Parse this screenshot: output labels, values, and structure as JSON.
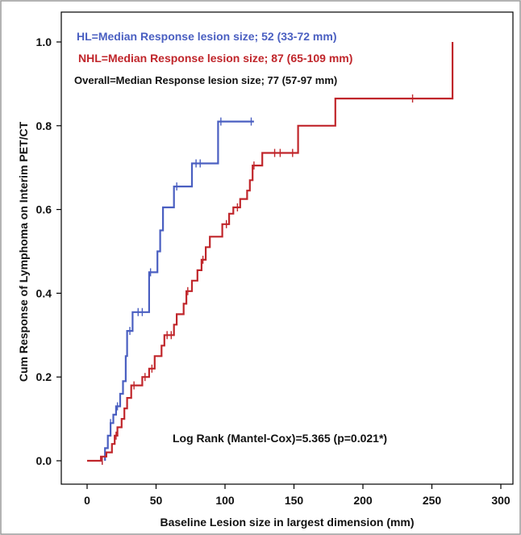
{
  "chart_data": {
    "type": "line",
    "subtype": "step (Kaplan-Meier cumulative response)",
    "xlabel": "Baseline Lesion size in largest dimension (mm)",
    "ylabel": "Cum Response of Lymphoma on Interim PET/CT",
    "xlim": [
      0,
      300
    ],
    "ylim": [
      0,
      1.0
    ],
    "x_ticks": [
      "0",
      "50",
      "100",
      "150",
      "200",
      "250",
      "300"
    ],
    "y_ticks": [
      "0.0",
      "0.2",
      "0.4",
      "0.6",
      "0.8",
      "1.0"
    ],
    "grid": false,
    "colors": {
      "hl": "#4a5fc1",
      "nhl": "#c0262b",
      "overall": "#111111",
      "frame": "#000000"
    },
    "annotations": [
      {
        "id": "hl",
        "text": "HL=Median Response lesion size; 52 (33-72 mm)",
        "color": "#4a5fc1"
      },
      {
        "id": "nhl",
        "text": "NHL=Median Response lesion size; 87 (65-109 mm)",
        "color": "#c0262b"
      },
      {
        "id": "overall",
        "text": "Overall=Median Response lesion size; 77 (57-97 mm)",
        "color": "#111111"
      },
      {
        "id": "logrank",
        "text": "Log Rank (Mantel-Cox)=5.365 (p=0.021*)",
        "color": "#111111"
      }
    ],
    "series": [
      {
        "key": "hl",
        "color": "#4a5fc1",
        "steps": [
          [
            13,
            0
          ],
          [
            13,
            0.03
          ],
          [
            15,
            0.03
          ],
          [
            15,
            0.06
          ],
          [
            17,
            0.06
          ],
          [
            17,
            0.09
          ],
          [
            19,
            0.09
          ],
          [
            19,
            0.11
          ],
          [
            21,
            0.11
          ],
          [
            21,
            0.13
          ],
          [
            24,
            0.13
          ],
          [
            24,
            0.16
          ],
          [
            26,
            0.16
          ],
          [
            26,
            0.19
          ],
          [
            28,
            0.19
          ],
          [
            28,
            0.25
          ],
          [
            29,
            0.25
          ],
          [
            29,
            0.31
          ],
          [
            33,
            0.31
          ],
          [
            33,
            0.355
          ],
          [
            45,
            0.355
          ],
          [
            45,
            0.45
          ],
          [
            51,
            0.45
          ],
          [
            51,
            0.5
          ],
          [
            53,
            0.5
          ],
          [
            53,
            0.55
          ],
          [
            55,
            0.55
          ],
          [
            55,
            0.605
          ],
          [
            63,
            0.605
          ],
          [
            63,
            0.655
          ],
          [
            76,
            0.655
          ],
          [
            76,
            0.71
          ],
          [
            95,
            0.71
          ],
          [
            95,
            0.81
          ],
          [
            121,
            0.81
          ]
        ],
        "censored": [
          [
            11,
            0
          ],
          [
            17,
            0.09
          ],
          [
            22,
            0.13
          ],
          [
            31,
            0.31
          ],
          [
            37,
            0.355
          ],
          [
            40,
            0.355
          ],
          [
            46,
            0.45
          ],
          [
            65,
            0.655
          ],
          [
            79,
            0.71
          ],
          [
            82,
            0.71
          ],
          [
            97,
            0.81
          ],
          [
            119,
            0.81
          ]
        ]
      },
      {
        "key": "nhl",
        "color": "#c0262b",
        "steps": [
          [
            0,
            0
          ],
          [
            10,
            0
          ],
          [
            10,
            0.01
          ],
          [
            14,
            0.01
          ],
          [
            14,
            0.02
          ],
          [
            18,
            0.02
          ],
          [
            18,
            0.04
          ],
          [
            20,
            0.04
          ],
          [
            20,
            0.06
          ],
          [
            22,
            0.06
          ],
          [
            22,
            0.08
          ],
          [
            25,
            0.08
          ],
          [
            25,
            0.1
          ],
          [
            27,
            0.1
          ],
          [
            27,
            0.125
          ],
          [
            29,
            0.125
          ],
          [
            29,
            0.15
          ],
          [
            32,
            0.15
          ],
          [
            32,
            0.18
          ],
          [
            40,
            0.18
          ],
          [
            40,
            0.2
          ],
          [
            45,
            0.2
          ],
          [
            45,
            0.22
          ],
          [
            49,
            0.22
          ],
          [
            49,
            0.25
          ],
          [
            54,
            0.25
          ],
          [
            54,
            0.275
          ],
          [
            56,
            0.275
          ],
          [
            56,
            0.3
          ],
          [
            63,
            0.3
          ],
          [
            63,
            0.325
          ],
          [
            65,
            0.325
          ],
          [
            65,
            0.35
          ],
          [
            70,
            0.35
          ],
          [
            70,
            0.375
          ],
          [
            72,
            0.375
          ],
          [
            72,
            0.405
          ],
          [
            76,
            0.405
          ],
          [
            76,
            0.43
          ],
          [
            80,
            0.43
          ],
          [
            80,
            0.455
          ],
          [
            83,
            0.455
          ],
          [
            83,
            0.48
          ],
          [
            86,
            0.48
          ],
          [
            86,
            0.51
          ],
          [
            89,
            0.51
          ],
          [
            89,
            0.535
          ],
          [
            98,
            0.535
          ],
          [
            98,
            0.565
          ],
          [
            103,
            0.565
          ],
          [
            103,
            0.59
          ],
          [
            106,
            0.59
          ],
          [
            106,
            0.605
          ],
          [
            111,
            0.605
          ],
          [
            111,
            0.625
          ],
          [
            116,
            0.625
          ],
          [
            116,
            0.645
          ],
          [
            118,
            0.645
          ],
          [
            118,
            0.67
          ],
          [
            120,
            0.67
          ],
          [
            120,
            0.705
          ],
          [
            127,
            0.705
          ],
          [
            127,
            0.735
          ],
          [
            153,
            0.735
          ],
          [
            153,
            0.8
          ],
          [
            180,
            0.8
          ],
          [
            180,
            0.865
          ],
          [
            265,
            0.865
          ],
          [
            265,
            1.0
          ]
        ],
        "censored": [
          [
            11,
            0
          ],
          [
            21,
            0.06
          ],
          [
            34,
            0.18
          ],
          [
            42,
            0.2
          ],
          [
            47,
            0.22
          ],
          [
            58,
            0.3
          ],
          [
            61,
            0.3
          ],
          [
            73,
            0.405
          ],
          [
            84,
            0.48
          ],
          [
            101,
            0.565
          ],
          [
            109,
            0.605
          ],
          [
            121,
            0.705
          ],
          [
            136,
            0.735
          ],
          [
            140,
            0.735
          ],
          [
            149,
            0.735
          ],
          [
            236,
            0.865
          ]
        ]
      }
    ]
  }
}
